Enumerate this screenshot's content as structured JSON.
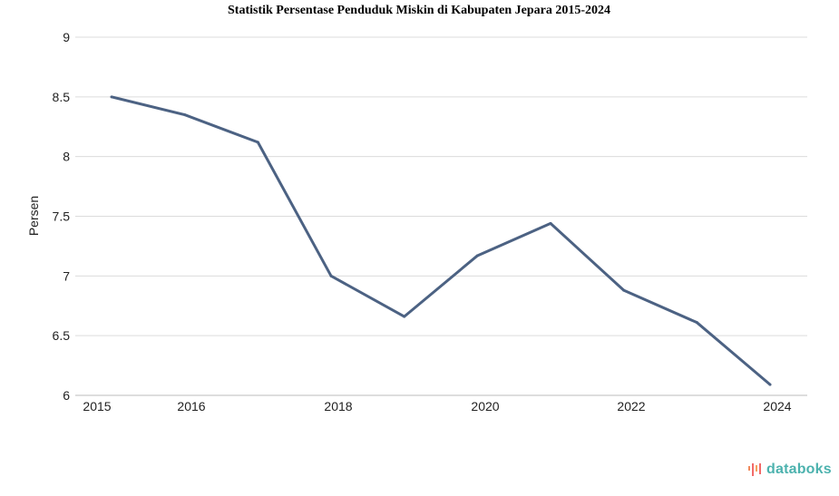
{
  "chart_data": {
    "type": "line",
    "title": "Statistik Persentase Penduduk Miskin di Kabupaten Jepara 2015-2024",
    "xlabel": "",
    "ylabel": "Persen",
    "ylim": [
      6,
      9
    ],
    "yticks": [
      "6",
      "6.5",
      "7",
      "7.5",
      "8",
      "8.5",
      "9"
    ],
    "xtick_labels": [
      "2015",
      "2016",
      "2018",
      "2020",
      "2022",
      "2024"
    ],
    "grid": true,
    "series": [
      {
        "name": "Persentase Penduduk Miskin",
        "color": "#4c6283",
        "x": [
          2015,
          2016,
          2017,
          2018,
          2019,
          2020,
          2021,
          2022,
          2023,
          2024
        ],
        "values": [
          8.5,
          8.35,
          8.12,
          7.0,
          6.66,
          7.17,
          7.44,
          6.88,
          6.61,
          6.09
        ]
      }
    ]
  },
  "branding": {
    "logo_text": "databoks",
    "logo_color": "#4cb2ae"
  }
}
